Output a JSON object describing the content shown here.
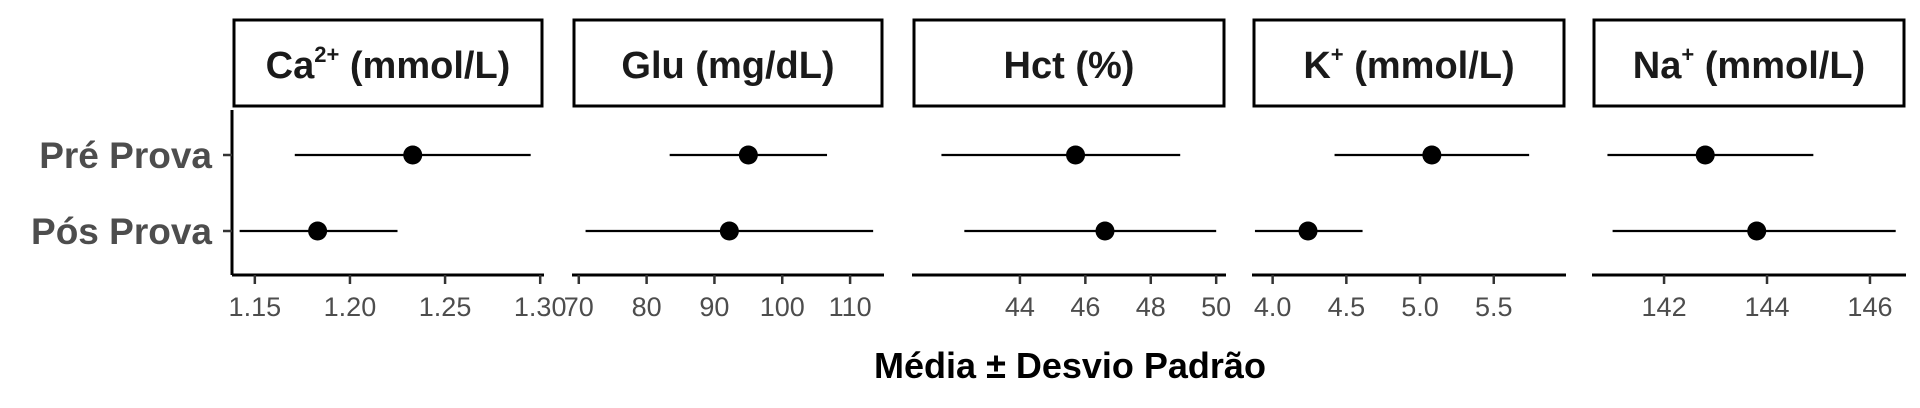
{
  "chart_data": {
    "type": "forest",
    "categories": [
      "Pré Prova",
      "Pós Prova"
    ],
    "xlabel": "Média ± Desvio Padrão",
    "facets": [
      {
        "label": "Ca",
        "label_sup": "2+",
        "label_suffix": " (mmol/L)",
        "xlim": [
          1.138,
          1.302
        ],
        "ticks": [
          1.15,
          1.2,
          1.25,
          1.3
        ],
        "tick_labels": [
          "1.15",
          "1.20",
          "1.25",
          "1.30"
        ],
        "points": [
          {
            "category": "Pré Prova",
            "mean": 1.233,
            "low": 1.171,
            "high": 1.295
          },
          {
            "category": "Pós Prova",
            "mean": 1.183,
            "low": 1.142,
            "high": 1.225
          }
        ]
      },
      {
        "label": "Glu",
        "label_sup": "",
        "label_suffix": " (mg/dL)",
        "xlim": [
          69.0,
          115.0
        ],
        "ticks": [
          70,
          80,
          90,
          100,
          110
        ],
        "tick_labels": [
          "70",
          "80",
          "90",
          "100",
          "110"
        ],
        "points": [
          {
            "category": "Pré Prova",
            "mean": 95.0,
            "low": 83.4,
            "high": 106.6
          },
          {
            "category": "Pós Prova",
            "mean": 92.2,
            "low": 71.0,
            "high": 113.4
          }
        ]
      },
      {
        "label": "Hct (%)",
        "label_sup": "",
        "label_suffix": "",
        "xlim": [
          40.7,
          50.3
        ],
        "ticks": [
          44,
          46,
          48,
          50
        ],
        "tick_labels": [
          "44",
          "46",
          "48",
          "50"
        ],
        "points": [
          {
            "category": "Pré Prova",
            "mean": 45.7,
            "low": 41.6,
            "high": 48.9
          },
          {
            "category": "Pós Prova",
            "mean": 46.6,
            "low": 42.3,
            "high": 50.0
          }
        ]
      },
      {
        "label": "K",
        "label_sup": "+",
        "label_suffix": " (mmol/L)",
        "xlim": [
          3.86,
          5.99
        ],
        "ticks": [
          4.0,
          4.5,
          5.0,
          5.5
        ],
        "tick_labels": [
          "4.0",
          "4.5",
          "5.0",
          "5.5"
        ],
        "points": [
          {
            "category": "Pré Prova",
            "mean": 5.08,
            "low": 4.42,
            "high": 5.74
          },
          {
            "category": "Pós Prova",
            "mean": 4.24,
            "low": 3.88,
            "high": 4.61
          }
        ]
      },
      {
        "label": "Na",
        "label_sup": "+",
        "label_suffix": " (mmol/L)",
        "xlim": [
          140.6,
          146.7
        ],
        "ticks": [
          142,
          144,
          146
        ],
        "tick_labels": [
          "142",
          "144",
          "146"
        ],
        "points": [
          {
            "category": "Pré Prova",
            "mean": 142.8,
            "low": 140.9,
            "high": 144.9
          },
          {
            "category": "Pós Prova",
            "mean": 143.8,
            "low": 141.0,
            "high": 146.5
          }
        ]
      }
    ]
  }
}
